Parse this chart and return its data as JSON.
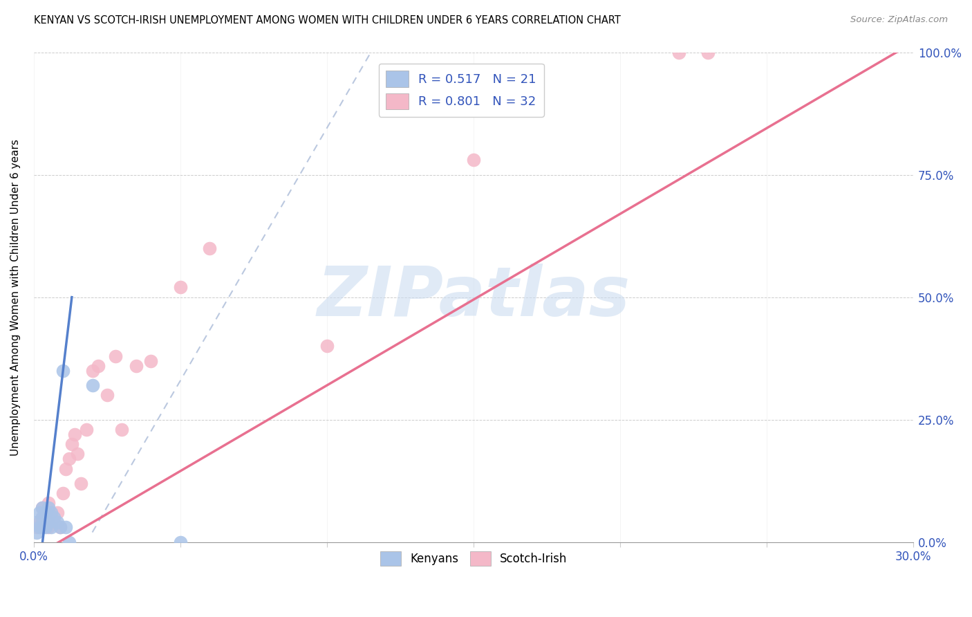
{
  "title": "KENYAN VS SCOTCH-IRISH UNEMPLOYMENT AMONG WOMEN WITH CHILDREN UNDER 6 YEARS CORRELATION CHART",
  "source": "Source: ZipAtlas.com",
  "ylabel": "Unemployment Among Women with Children Under 6 years",
  "xlim": [
    0.0,
    0.3
  ],
  "ylim": [
    0.0,
    1.0
  ],
  "xticks": [
    0.0,
    0.05,
    0.1,
    0.15,
    0.2,
    0.25,
    0.3
  ],
  "xtick_labels": [
    "0.0%",
    "",
    "",
    "",
    "",
    "",
    "30.0%"
  ],
  "yticks": [
    0.0,
    0.25,
    0.5,
    0.75,
    1.0
  ],
  "ytick_labels_right": [
    "0.0%",
    "25.0%",
    "50.0%",
    "75.0%",
    "100.0%"
  ],
  "kenyan_R": "0.517",
  "kenyan_N": "21",
  "scotch_irish_R": "0.801",
  "scotch_irish_N": "32",
  "kenyan_scatter_color": "#aac4e8",
  "scotch_scatter_color": "#f4b8c8",
  "kenyan_line_color": "#5580cc",
  "scotch_line_color": "#e87090",
  "dashed_line_color": "#aabbd8",
  "watermark_color": "#ccddf0",
  "watermark": "ZIPatlas",
  "legend_text_color": "#3355bb",
  "source_color": "#888888",
  "kenyan_x": [
    0.001,
    0.001,
    0.002,
    0.002,
    0.003,
    0.003,
    0.003,
    0.004,
    0.004,
    0.005,
    0.005,
    0.006,
    0.006,
    0.007,
    0.008,
    0.009,
    0.01,
    0.011,
    0.012,
    0.02,
    0.05
  ],
  "kenyan_y": [
    0.02,
    0.04,
    0.03,
    0.06,
    0.03,
    0.05,
    0.07,
    0.03,
    0.06,
    0.04,
    0.07,
    0.03,
    0.06,
    0.05,
    0.04,
    0.03,
    0.35,
    0.03,
    0.0,
    0.32,
    0.0
  ],
  "scotch_x": [
    0.001,
    0.002,
    0.003,
    0.003,
    0.004,
    0.005,
    0.005,
    0.006,
    0.007,
    0.008,
    0.009,
    0.01,
    0.011,
    0.012,
    0.013,
    0.014,
    0.015,
    0.016,
    0.018,
    0.02,
    0.022,
    0.025,
    0.028,
    0.03,
    0.035,
    0.04,
    0.05,
    0.06,
    0.1,
    0.15,
    0.22,
    0.23
  ],
  "scotch_y": [
    0.03,
    0.04,
    0.05,
    0.07,
    0.06,
    0.03,
    0.08,
    0.05,
    0.04,
    0.06,
    0.03,
    0.1,
    0.15,
    0.17,
    0.2,
    0.22,
    0.18,
    0.12,
    0.23,
    0.35,
    0.36,
    0.3,
    0.38,
    0.23,
    0.36,
    0.37,
    0.52,
    0.6,
    0.4,
    0.78,
    1.0,
    1.0
  ],
  "kenyan_line_x": [
    0.005,
    0.012
  ],
  "kenyan_line_y": [
    0.0,
    0.46
  ],
  "scotch_line_x": [
    0.0,
    0.3
  ],
  "scotch_line_y": [
    0.0,
    1.0
  ],
  "dashed_line_x": [
    0.02,
    0.12
  ],
  "dashed_line_y": [
    0.0,
    1.0
  ]
}
